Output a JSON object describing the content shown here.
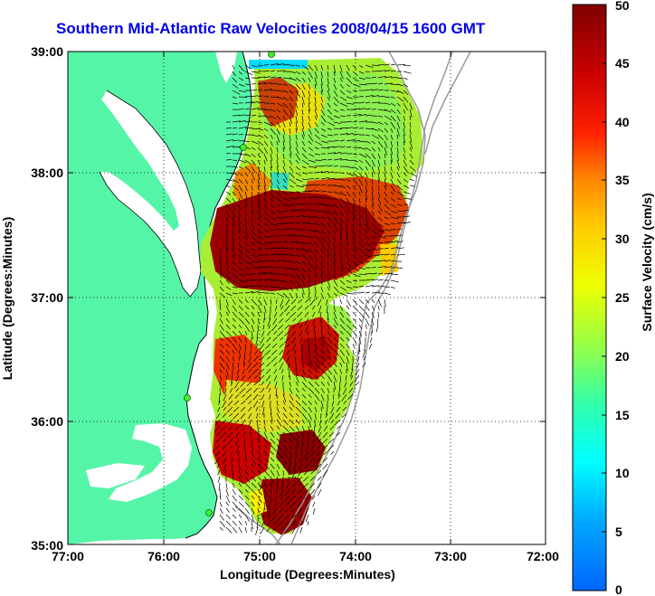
{
  "title": "Southern Mid-Atlantic Raw Velocities 2008/04/15 1600 GMT",
  "x_axis": {
    "label": "Longitude (Degrees:Minutes)",
    "ticks": [
      "77:00",
      "76:00",
      "75:00",
      "74:00",
      "73:00",
      "72:00"
    ]
  },
  "y_axis": {
    "label": "Latitude (Degrees:Minutes)",
    "ticks": [
      "39:00",
      "38:00",
      "37:00",
      "36:00",
      "35:00"
    ]
  },
  "colorbar": {
    "label": "Surface Velocity (cm/s)",
    "ticks": [
      "50",
      "45",
      "40",
      "35",
      "30",
      "25",
      "20",
      "15",
      "10",
      "5",
      "0"
    ],
    "min": 0,
    "max": 50
  },
  "colors": {
    "land": "#55f5a8",
    "title": "#0000ee"
  }
}
